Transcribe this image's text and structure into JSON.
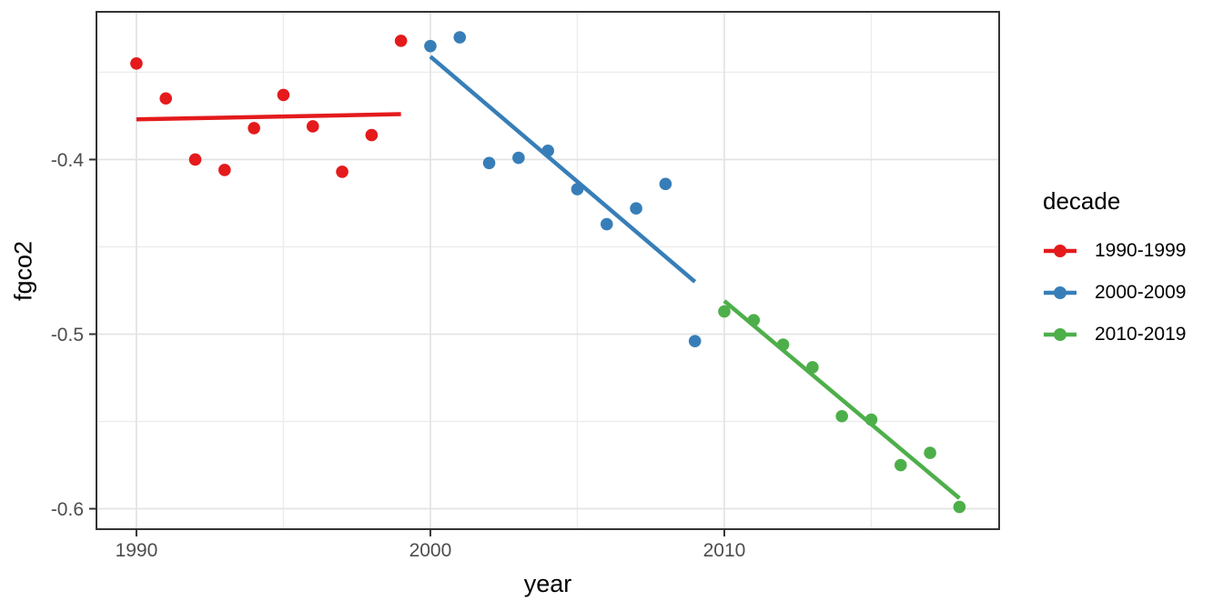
{
  "chart_data": {
    "type": "scatter",
    "title": "",
    "xlabel": "year",
    "ylabel": "fgco2",
    "xlim": [
      1988.64,
      2019.35
    ],
    "ylim": [
      -0.6117,
      -0.3154
    ],
    "x_major_ticks": [
      1990,
      2000,
      2010
    ],
    "x_minor_gridlines": [
      1995,
      2005,
      2015
    ],
    "y_major_ticks": [
      -0.4,
      -0.5,
      -0.6
    ],
    "y_minor_gridlines": [
      -0.35,
      -0.45,
      -0.55
    ],
    "grid": "major and minor gridlines on, light gray on white panel",
    "legend": {
      "title": "decade",
      "position": "right"
    },
    "series": [
      {
        "name": "1990-1999",
        "color": "#E41A1C",
        "x": [
          1990,
          1991,
          1992,
          1993,
          1994,
          1995,
          1996,
          1997,
          1998,
          1999
        ],
        "y": [
          -0.345,
          -0.365,
          -0.4,
          -0.406,
          -0.382,
          -0.363,
          -0.381,
          -0.407,
          -0.386,
          -0.332
        ],
        "trend_line": {
          "x": [
            1990,
            1999
          ],
          "y": [
            -0.377,
            -0.374
          ]
        }
      },
      {
        "name": "2000-2009",
        "color": "#377EB8",
        "x": [
          2000,
          2001,
          2002,
          2003,
          2004,
          2005,
          2006,
          2007,
          2008,
          2009
        ],
        "y": [
          -0.335,
          -0.33,
          -0.402,
          -0.399,
          -0.395,
          -0.417,
          -0.437,
          -0.428,
          -0.414,
          -0.504
        ],
        "trend_line": {
          "x": [
            2000,
            2009
          ],
          "y": [
            -0.341,
            -0.47
          ]
        }
      },
      {
        "name": "2010-2019",
        "color": "#4DAF4A",
        "x": [
          2010,
          2011,
          2012,
          2013,
          2014,
          2015,
          2016,
          2017,
          2018
        ],
        "y": [
          -0.487,
          -0.492,
          -0.506,
          -0.519,
          -0.547,
          -0.549,
          -0.575,
          -0.568,
          -0.599
        ],
        "trend_line": {
          "x": [
            2010,
            2018
          ],
          "y": [
            -0.481,
            -0.594
          ]
        }
      }
    ],
    "style_colors": {
      "panel_background": "#FFFFFF",
      "panel_border": "#333333",
      "grid_major": "#E4E4E4",
      "grid_minor": "#ECECEC",
      "tick_mark": "#333333",
      "tick_label_text": "#4D4D4D",
      "axis_title_text": "#000000"
    }
  }
}
